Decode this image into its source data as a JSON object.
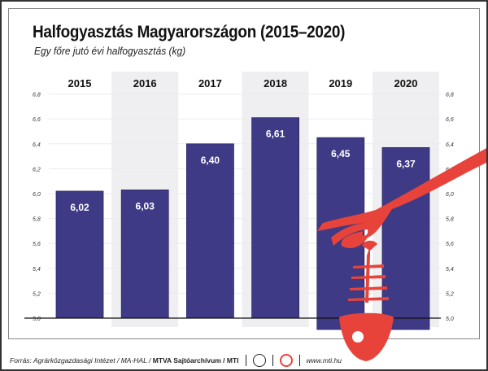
{
  "chart_data": {
    "type": "bar",
    "title": "Halfogyasztás Magyarországon (2015–2020)",
    "subtitle": "Egy főre jutó évi halfogyasztás (kg)",
    "categories": [
      "2015",
      "2016",
      "2017",
      "2018",
      "2019",
      "2020"
    ],
    "values": [
      6.02,
      6.03,
      6.4,
      6.61,
      6.45,
      6.37
    ],
    "value_labels": [
      "6,02",
      "6,03",
      "6,40",
      "6,61",
      "6,45",
      "6,37"
    ],
    "ylim": [
      5.0,
      6.8
    ],
    "yticks": [
      5.0,
      5.2,
      5.4,
      5.6,
      5.8,
      6.0,
      6.2,
      6.4,
      6.6,
      6.8
    ],
    "ytick_labels": [
      "5,0",
      "5,2",
      "5,4",
      "5,6",
      "5,8",
      "6,0",
      "6,2",
      "6,4",
      "6,6",
      "6,8"
    ],
    "grid": true,
    "bar_color": "#3f3a85",
    "band_color": "#efeff2",
    "illustration_color": "#e8433a"
  },
  "footer": {
    "source": "Forrás: Agrárközgazdasági Intézet / MA-HAL / ",
    "credit": "MTVA Sajtóarchívum / MTI",
    "logo1_text": "MTVA",
    "url": "www.mti.hu"
  }
}
